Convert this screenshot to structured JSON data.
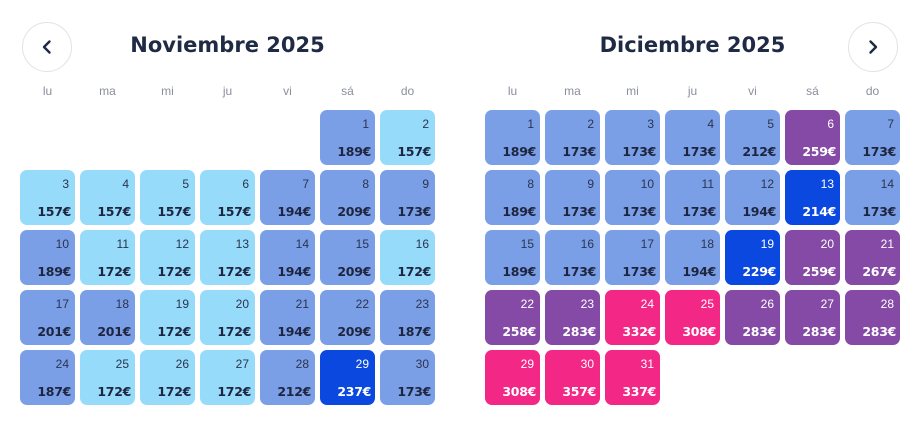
{
  "navigation": {
    "prev_icon": "chevron-left-icon",
    "next_icon": "chevron-right-icon"
  },
  "weekdays": [
    "lu",
    "ma",
    "mi",
    "ju",
    "vi",
    "sá",
    "do"
  ],
  "colors": {
    "light": "#96dcfa",
    "mid": "#7b9fe6",
    "blue": "#0a48e0",
    "purple": "#8549a6",
    "pink": "#f32785"
  },
  "months": [
    {
      "title": "Noviembre 2025",
      "start_weekday": 5,
      "days": [
        {
          "day": "1",
          "price": "189€",
          "level": "mid"
        },
        {
          "day": "2",
          "price": "157€",
          "level": "light"
        },
        {
          "day": "3",
          "price": "157€",
          "level": "light"
        },
        {
          "day": "4",
          "price": "157€",
          "level": "light"
        },
        {
          "day": "5",
          "price": "157€",
          "level": "light"
        },
        {
          "day": "6",
          "price": "157€",
          "level": "light"
        },
        {
          "day": "7",
          "price": "194€",
          "level": "mid"
        },
        {
          "day": "8",
          "price": "209€",
          "level": "mid"
        },
        {
          "day": "9",
          "price": "173€",
          "level": "mid"
        },
        {
          "day": "10",
          "price": "189€",
          "level": "mid"
        },
        {
          "day": "11",
          "price": "172€",
          "level": "light"
        },
        {
          "day": "12",
          "price": "172€",
          "level": "light"
        },
        {
          "day": "13",
          "price": "172€",
          "level": "light"
        },
        {
          "day": "14",
          "price": "194€",
          "level": "mid"
        },
        {
          "day": "15",
          "price": "209€",
          "level": "mid"
        },
        {
          "day": "16",
          "price": "172€",
          "level": "light"
        },
        {
          "day": "17",
          "price": "201€",
          "level": "mid"
        },
        {
          "day": "18",
          "price": "201€",
          "level": "mid"
        },
        {
          "day": "19",
          "price": "172€",
          "level": "light"
        },
        {
          "day": "20",
          "price": "172€",
          "level": "light"
        },
        {
          "day": "21",
          "price": "194€",
          "level": "mid"
        },
        {
          "day": "22",
          "price": "209€",
          "level": "mid"
        },
        {
          "day": "23",
          "price": "187€",
          "level": "mid"
        },
        {
          "day": "24",
          "price": "187€",
          "level": "mid"
        },
        {
          "day": "25",
          "price": "172€",
          "level": "light"
        },
        {
          "day": "26",
          "price": "172€",
          "level": "light"
        },
        {
          "day": "27",
          "price": "172€",
          "level": "light"
        },
        {
          "day": "28",
          "price": "212€",
          "level": "mid"
        },
        {
          "day": "29",
          "price": "237€",
          "level": "blue"
        },
        {
          "day": "30",
          "price": "173€",
          "level": "mid"
        }
      ]
    },
    {
      "title": "Diciembre 2025",
      "start_weekday": 0,
      "days": [
        {
          "day": "1",
          "price": "189€",
          "level": "mid"
        },
        {
          "day": "2",
          "price": "173€",
          "level": "mid"
        },
        {
          "day": "3",
          "price": "173€",
          "level": "mid"
        },
        {
          "day": "4",
          "price": "173€",
          "level": "mid"
        },
        {
          "day": "5",
          "price": "212€",
          "level": "mid"
        },
        {
          "day": "6",
          "price": "259€",
          "level": "purple"
        },
        {
          "day": "7",
          "price": "173€",
          "level": "mid"
        },
        {
          "day": "8",
          "price": "189€",
          "level": "mid"
        },
        {
          "day": "9",
          "price": "173€",
          "level": "mid"
        },
        {
          "day": "10",
          "price": "173€",
          "level": "mid"
        },
        {
          "day": "11",
          "price": "173€",
          "level": "mid"
        },
        {
          "day": "12",
          "price": "194€",
          "level": "mid"
        },
        {
          "day": "13",
          "price": "214€",
          "level": "blue"
        },
        {
          "day": "14",
          "price": "173€",
          "level": "mid"
        },
        {
          "day": "15",
          "price": "189€",
          "level": "mid"
        },
        {
          "day": "16",
          "price": "173€",
          "level": "mid"
        },
        {
          "day": "17",
          "price": "173€",
          "level": "mid"
        },
        {
          "day": "18",
          "price": "194€",
          "level": "mid"
        },
        {
          "day": "19",
          "price": "229€",
          "level": "blue"
        },
        {
          "day": "20",
          "price": "259€",
          "level": "purple"
        },
        {
          "day": "21",
          "price": "267€",
          "level": "purple"
        },
        {
          "day": "22",
          "price": "258€",
          "level": "purple"
        },
        {
          "day": "23",
          "price": "283€",
          "level": "purple"
        },
        {
          "day": "24",
          "price": "332€",
          "level": "pink"
        },
        {
          "day": "25",
          "price": "308€",
          "level": "pink"
        },
        {
          "day": "26",
          "price": "283€",
          "level": "purple"
        },
        {
          "day": "27",
          "price": "283€",
          "level": "purple"
        },
        {
          "day": "28",
          "price": "283€",
          "level": "purple"
        },
        {
          "day": "29",
          "price": "308€",
          "level": "pink"
        },
        {
          "day": "30",
          "price": "357€",
          "level": "pink"
        },
        {
          "day": "31",
          "price": "337€",
          "level": "pink"
        }
      ]
    }
  ]
}
